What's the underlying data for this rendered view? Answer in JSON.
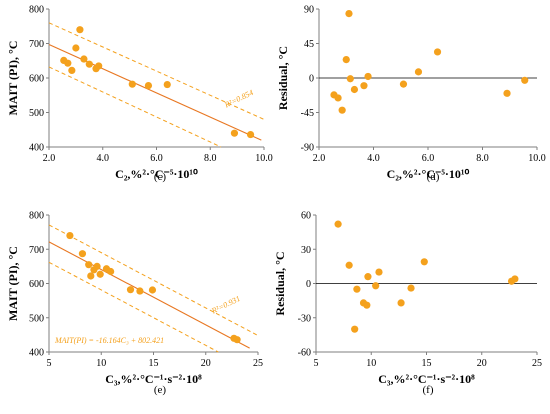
{
  "colors": {
    "point": "#F4A11D",
    "line": "#E87722",
    "band": "#F4A11D",
    "zero": "#000000",
    "axis": "#7f7f7f"
  },
  "chart_data": [
    {
      "id": "c",
      "type": "scatter",
      "panel_label": "(c)",
      "xlabel": "C₂,%²·°C⁻⁵·10¹⁰",
      "ylabel": "MAIT (PI), °C",
      "xlim": [
        2.0,
        10.0
      ],
      "ylim": [
        400,
        800
      ],
      "xticks": [
        "2.0",
        "4.0",
        "6.0",
        "8.0",
        "10.0"
      ],
      "yticks": [
        "400",
        "500",
        "600",
        "700",
        "800"
      ],
      "annotation": "R²=0.854",
      "fit": {
        "x": [
          2.0,
          9.9
        ],
        "y": [
          697,
          420
        ]
      },
      "band_upper": {
        "x": [
          2.0,
          10.0
        ],
        "y": [
          760,
          480
        ]
      },
      "band_lower": {
        "x": [
          2.0,
          8.4
        ],
        "y": [
          632,
          400
        ]
      },
      "points": [
        {
          "x": 2.55,
          "y": 651
        },
        {
          "x": 2.7,
          "y": 643
        },
        {
          "x": 2.85,
          "y": 622
        },
        {
          "x": 3.0,
          "y": 687
        },
        {
          "x": 3.15,
          "y": 740
        },
        {
          "x": 3.3,
          "y": 655
        },
        {
          "x": 3.5,
          "y": 640
        },
        {
          "x": 3.75,
          "y": 627
        },
        {
          "x": 3.85,
          "y": 635
        },
        {
          "x": 5.1,
          "y": 582
        },
        {
          "x": 5.7,
          "y": 578
        },
        {
          "x": 6.4,
          "y": 581
        },
        {
          "x": 8.9,
          "y": 440
        },
        {
          "x": 9.5,
          "y": 436
        }
      ]
    },
    {
      "id": "d",
      "type": "scatter",
      "panel_label": "(d)",
      "xlabel": "C₂,%²·°C⁻⁵·10¹⁰",
      "ylabel": "Residual, °C",
      "xlim": [
        2.0,
        10.0
      ],
      "ylim": [
        -90,
        90
      ],
      "xticks": [
        "2.0",
        "4.0",
        "6.0",
        "8.0",
        "10.0"
      ],
      "yticks": [
        "-90",
        "-45",
        "0",
        "45",
        "90"
      ],
      "zero_line": true,
      "points": [
        {
          "x": 2.55,
          "y": -22
        },
        {
          "x": 2.7,
          "y": -26
        },
        {
          "x": 2.85,
          "y": -42
        },
        {
          "x": 3.0,
          "y": 24
        },
        {
          "x": 3.1,
          "y": 84
        },
        {
          "x": 3.15,
          "y": -1
        },
        {
          "x": 3.3,
          "y": -15
        },
        {
          "x": 3.65,
          "y": -10
        },
        {
          "x": 3.8,
          "y": 2
        },
        {
          "x": 5.1,
          "y": -8
        },
        {
          "x": 5.65,
          "y": 8
        },
        {
          "x": 6.35,
          "y": 34
        },
        {
          "x": 8.9,
          "y": -20
        },
        {
          "x": 9.55,
          "y": -3
        }
      ]
    },
    {
      "id": "e",
      "type": "scatter",
      "panel_label": "(e)",
      "xlabel": "C₃,%²·°C⁻¹·s⁻²·10⁸",
      "ylabel": "MAIT (PI), °C",
      "xlim": [
        5,
        25
      ],
      "ylim": [
        400,
        800
      ],
      "xticks": [
        "5",
        "10",
        "15",
        "20",
        "25"
      ],
      "yticks": [
        "400",
        "500",
        "600",
        "700",
        "800"
      ],
      "annotation": "R²=0.931",
      "equation": "MAIT(PI) = -16.164C₃ + 802.421",
      "fit": {
        "x": [
          5,
          24.2
        ],
        "y": [
          721.6,
          411.3
        ]
      },
      "band_upper": {
        "x": [
          5,
          25
        ],
        "y": [
          771,
          448
        ]
      },
      "band_lower": {
        "x": [
          5,
          21.2
        ],
        "y": [
          662,
          400
        ]
      },
      "points": [
        {
          "x": 7.0,
          "y": 740
        },
        {
          "x": 8.2,
          "y": 687
        },
        {
          "x": 8.8,
          "y": 655
        },
        {
          "x": 9.0,
          "y": 622
        },
        {
          "x": 9.3,
          "y": 640
        },
        {
          "x": 9.6,
          "y": 650
        },
        {
          "x": 9.9,
          "y": 627
        },
        {
          "x": 10.5,
          "y": 643
        },
        {
          "x": 10.9,
          "y": 635
        },
        {
          "x": 12.8,
          "y": 582
        },
        {
          "x": 13.7,
          "y": 578
        },
        {
          "x": 14.9,
          "y": 581
        },
        {
          "x": 22.7,
          "y": 440
        },
        {
          "x": 23.0,
          "y": 436
        }
      ]
    },
    {
      "id": "f",
      "type": "scatter",
      "panel_label": "(f)",
      "xlabel": "C₃,%²·°C⁻¹·s⁻²·10⁸",
      "ylabel": "Residual, °C",
      "xlim": [
        5,
        25
      ],
      "ylim": [
        -60,
        60
      ],
      "xticks": [
        "5",
        "10",
        "15",
        "20",
        "25"
      ],
      "yticks": [
        "-60",
        "-30",
        "0",
        "30",
        "60"
      ],
      "zero_line": true,
      "points": [
        {
          "x": 7.0,
          "y": 52
        },
        {
          "x": 8.0,
          "y": 16
        },
        {
          "x": 8.5,
          "y": -40
        },
        {
          "x": 8.7,
          "y": -5
        },
        {
          "x": 9.3,
          "y": -17
        },
        {
          "x": 9.6,
          "y": -19
        },
        {
          "x": 9.7,
          "y": 6
        },
        {
          "x": 10.4,
          "y": -2
        },
        {
          "x": 10.7,
          "y": 10
        },
        {
          "x": 12.7,
          "y": -17
        },
        {
          "x": 13.6,
          "y": -4
        },
        {
          "x": 14.8,
          "y": 19
        },
        {
          "x": 22.7,
          "y": 2
        },
        {
          "x": 23.0,
          "y": 4
        }
      ]
    }
  ]
}
